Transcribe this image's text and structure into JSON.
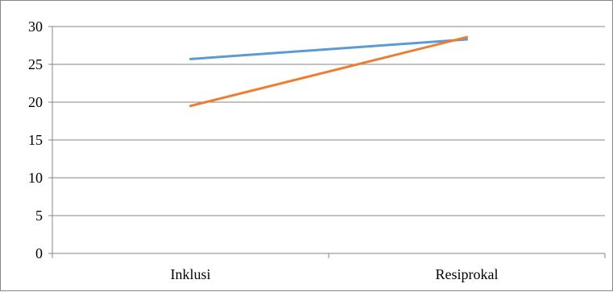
{
  "chart_data": {
    "type": "line",
    "categories": [
      "Inklusi",
      "Resiprokal"
    ],
    "series": [
      {
        "values": [
          25.7,
          28.3
        ],
        "color": "#5B9BD5"
      },
      {
        "values": [
          19.5,
          28.6
        ],
        "color": "#ED7D31"
      }
    ],
    "ylim": [
      0,
      30
    ],
    "yticks": [
      0,
      5,
      10,
      15,
      20,
      25,
      30
    ],
    "grid": true,
    "legend": "none"
  }
}
